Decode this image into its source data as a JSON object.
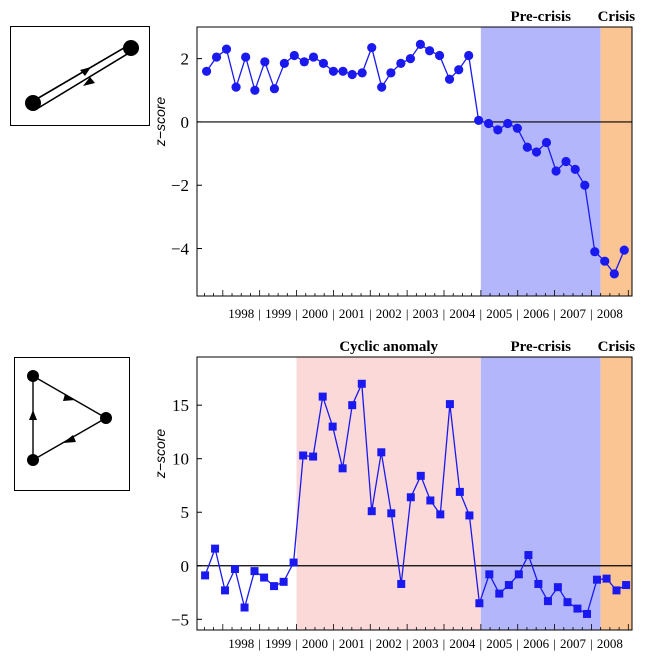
{
  "chart_data": [
    {
      "type": "line",
      "title": "",
      "xlabel": "",
      "ylabel": "z−score",
      "marker": "circle",
      "color": "#1a1af0",
      "ylim": [
        -5.5,
        3.0
      ],
      "yticks": [
        -4,
        -2,
        0,
        2
      ],
      "year_labels": [
        "1998",
        "1999",
        "2000",
        "2001",
        "2002",
        "2003",
        "2004",
        "2005",
        "2006",
        "2007",
        "2008"
      ],
      "xlim": [
        1997.3,
        2009.1
      ],
      "regions": [
        {
          "label": "Pre-crisis",
          "from": 2005.0,
          "to": 2008.25,
          "color": "#b3b6fb"
        },
        {
          "label": "Crisis",
          "from": 2008.25,
          "to": 2009.1,
          "color": "#fbc593"
        }
      ],
      "x": [
        1997.56,
        1997.83,
        1998.1,
        1998.36,
        1998.62,
        1998.87,
        1999.14,
        1999.4,
        1999.67,
        1999.94,
        2000.21,
        2000.46,
        2000.73,
        2001.0,
        2001.26,
        2001.51,
        2001.78,
        2002.04,
        2002.31,
        2002.56,
        2002.83,
        2003.09,
        2003.36,
        2003.61,
        2003.88,
        2004.15,
        2004.4,
        2004.67,
        2004.94,
        2005.21,
        2005.46,
        2005.73,
        2005.99,
        2006.26,
        2006.51,
        2006.78,
        2007.04,
        2007.31,
        2007.56,
        2007.82,
        2008.09,
        2008.36,
        2008.62,
        2008.89
      ],
      "y": [
        1.6,
        2.05,
        2.3,
        1.1,
        2.05,
        1.0,
        1.9,
        1.05,
        1.85,
        2.1,
        1.9,
        2.05,
        1.85,
        1.6,
        1.6,
        1.5,
        1.55,
        2.35,
        1.1,
        1.55,
        1.85,
        2.0,
        2.45,
        2.25,
        2.1,
        1.35,
        1.65,
        2.1,
        0.05,
        -0.05,
        -0.25,
        -0.05,
        -0.2,
        -0.8,
        -0.95,
        -0.65,
        -1.55,
        -1.25,
        -1.5,
        -2.0,
        -4.1,
        -4.4,
        -4.8,
        -4.05
      ]
    },
    {
      "type": "line",
      "title": "",
      "xlabel": "",
      "ylabel": "z−score",
      "marker": "square",
      "color": "#1a1af0",
      "ylim": [
        -6.0,
        19.5
      ],
      "yticks": [
        -5,
        0,
        5,
        10,
        15
      ],
      "year_labels": [
        "1998",
        "1999",
        "2000",
        "2001",
        "2002",
        "2003",
        "2004",
        "2005",
        "2006",
        "2007",
        "2008"
      ],
      "xlim": [
        1997.3,
        2009.1
      ],
      "regions": [
        {
          "label": "Cyclic anomaly",
          "from": 2000.0,
          "to": 2005.0,
          "color": "#fbd9d9"
        },
        {
          "label": "Pre-crisis",
          "from": 2005.0,
          "to": 2008.25,
          "color": "#b3b6fb"
        },
        {
          "label": "Crisis",
          "from": 2008.25,
          "to": 2009.1,
          "color": "#fbc593"
        }
      ],
      "x": [
        1997.52,
        1997.79,
        1998.06,
        1998.33,
        1998.59,
        1998.86,
        1999.12,
        1999.39,
        1999.65,
        1999.92,
        2000.18,
        2000.45,
        2000.71,
        2000.98,
        2001.25,
        2001.51,
        2001.77,
        2002.04,
        2002.3,
        2002.57,
        2002.84,
        2003.1,
        2003.37,
        2003.63,
        2003.9,
        2004.16,
        2004.43,
        2004.69,
        2004.96,
        2005.23,
        2005.5,
        2005.76,
        2006.03,
        2006.29,
        2006.56,
        2006.82,
        2007.09,
        2007.35,
        2007.62,
        2007.88,
        2008.15,
        2008.41,
        2008.68,
        2008.94
      ],
      "y": [
        -0.9,
        1.6,
        -2.3,
        -0.3,
        -3.9,
        -0.5,
        -1.1,
        -1.9,
        -1.5,
        0.3,
        10.3,
        10.2,
        15.8,
        13.0,
        9.1,
        15.0,
        17.0,
        5.1,
        10.6,
        4.9,
        -1.7,
        6.4,
        8.4,
        6.1,
        4.8,
        15.1,
        6.9,
        4.7,
        -3.5,
        -0.8,
        -2.6,
        -1.8,
        -0.8,
        1.0,
        -1.7,
        -3.3,
        -2.0,
        -3.4,
        -4.0,
        -4.5,
        -1.3,
        -1.2,
        -2.3,
        -1.8
      ]
    }
  ]
}
